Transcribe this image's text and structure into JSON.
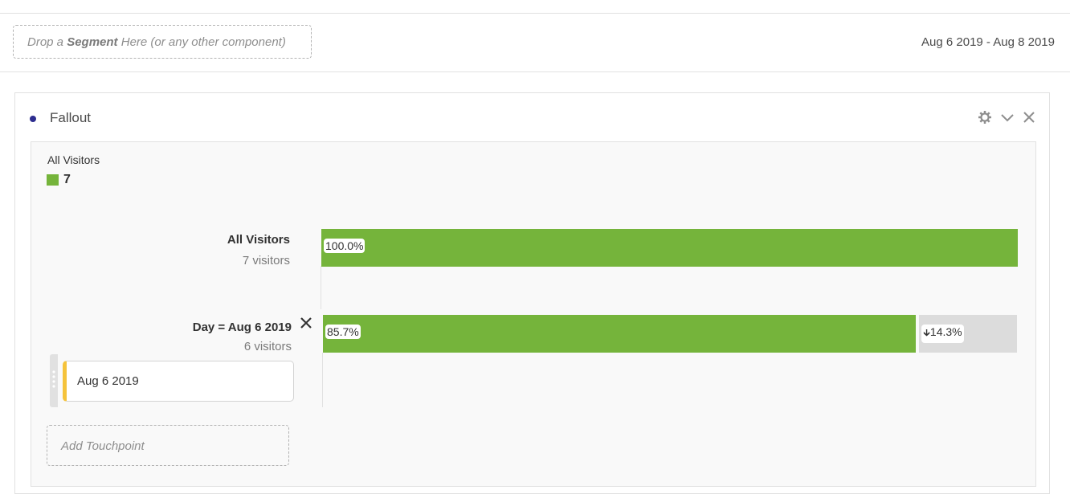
{
  "toolbar": {
    "drop_zone": {
      "prefix": "Drop a ",
      "bold": "Segment",
      "suffix": " Here (or any other component)"
    },
    "date_range": "Aug 6 2019 - Aug 8 2019"
  },
  "panel": {
    "title": "Fallout",
    "icons": [
      "gear-icon",
      "chevron-down-icon",
      "close-icon"
    ],
    "legend": {
      "label": "All Visitors",
      "value": "7",
      "color": "#75b43b"
    },
    "steps": [
      {
        "label": "All Visitors",
        "count": "7 visitors",
        "percent": 100.0,
        "percent_label": "100.0%"
      },
      {
        "label": "Day = Aug 6 2019",
        "count": "6 visitors",
        "percent": 85.7,
        "percent_label": "85.7%",
        "fallout_label": "14.3%",
        "touchpoint": "Aug 6 2019"
      }
    ],
    "add_touchpoint": "Add Touchpoint",
    "colors": {
      "bar": "#75b43b",
      "fallout": "#dcdcdc",
      "segment_accent": "#f5c33b"
    }
  }
}
